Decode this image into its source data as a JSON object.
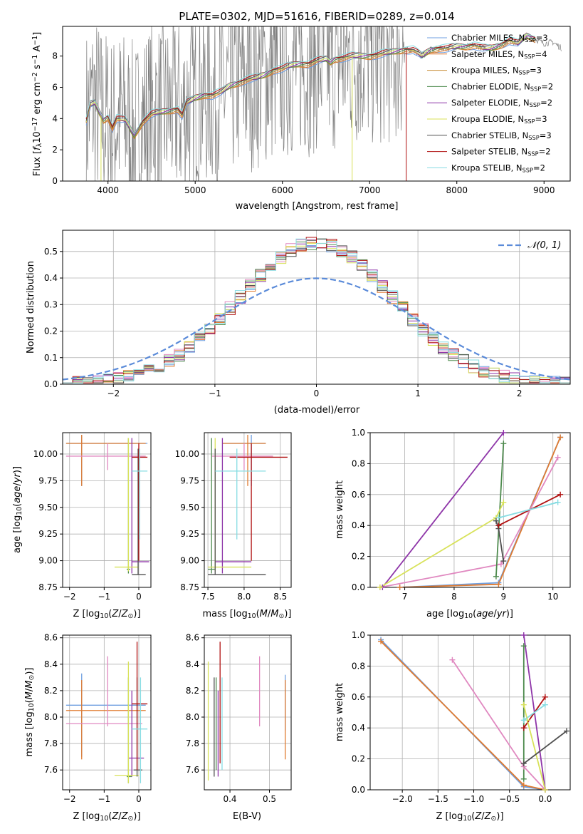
{
  "figure_title": "PLATE=0302, MJD=51616, FIBERID=0289, z=0.014",
  "colors": {
    "data": "#808080",
    "normal": "#5b8bd9",
    "models": [
      "#6f9fe0",
      "#e07b30",
      "#c58a2e",
      "#4e8b4e",
      "#8e35a8",
      "#d8e25a",
      "#505050",
      "#b01010",
      "#86dce2"
    ],
    "second": [
      "#6f9fe0",
      "#e07b30",
      "#e088c0",
      "#4e8b4e",
      "#8e35a8",
      "#d8e25a",
      "#505050",
      "#b01010",
      "#86dce2"
    ]
  },
  "legend_spectrum": [
    {
      "label": "Chabrier MILES, N",
      "sub": "SSP",
      "suffix": "=3"
    },
    {
      "label": "Salpeter MILES, N",
      "sub": "SSP",
      "suffix": "=4"
    },
    {
      "label": "Kroupa MILES, N",
      "sub": "SSP",
      "suffix": "=3"
    },
    {
      "label": "Chabrier ELODIE, N",
      "sub": "SSP",
      "suffix": "=2"
    },
    {
      "label": "Salpeter ELODIE, N",
      "sub": "SSP",
      "suffix": "=2"
    },
    {
      "label": "Kroupa ELODIE, N",
      "sub": "SSP",
      "suffix": "=3"
    },
    {
      "label": "Chabrier STELIB, N",
      "sub": "SSP",
      "suffix": "=3"
    },
    {
      "label": "Salpeter STELIB, N",
      "sub": "SSP",
      "suffix": "=2"
    },
    {
      "label": "Kroupa STELIB, N",
      "sub": "SSP",
      "suffix": "=2"
    }
  ],
  "chart_data": [
    {
      "id": "spectrum",
      "type": "line",
      "xlabel": "wavelength [Angstrom, rest frame]",
      "ylabel": "Flux [f_λ10^-17 erg cm^-2 s^-1 A^-1]",
      "xlim": [
        3480,
        9300
      ],
      "ylim": [
        0,
        9.9
      ],
      "xticks": [
        4000,
        5000,
        6000,
        7000,
        8000,
        9000
      ],
      "yticks": [
        0,
        2,
        4,
        6,
        8
      ],
      "grid": false,
      "legend_position": "top-right",
      "continuum": {
        "x": [
          3750,
          3800,
          3850,
          3900,
          3950,
          4000,
          4050,
          4100,
          4200,
          4300,
          4400,
          4500,
          4600,
          4700,
          4800,
          4850,
          4900,
          5000,
          5100,
          5200,
          5300,
          5400,
          5500,
          5600,
          5700,
          5800,
          5900,
          6000,
          6100,
          6200,
          6300,
          6400,
          6500,
          6550,
          6600,
          6700,
          6800,
          6900,
          7000,
          7100,
          7200,
          7300,
          7400,
          7500,
          7600,
          7700,
          7800,
          7900,
          8000,
          8100,
          8200,
          8300,
          8400,
          8500,
          8600,
          8700,
          8800,
          8900,
          9000,
          9100,
          9200
        ],
        "y": [
          3.8,
          4.9,
          5.0,
          4.4,
          3.9,
          4.1,
          3.4,
          4.0,
          3.9,
          2.9,
          3.8,
          4.3,
          4.4,
          4.5,
          4.6,
          4.2,
          5.0,
          5.3,
          5.5,
          5.5,
          5.7,
          6.1,
          6.3,
          6.5,
          6.6,
          6.8,
          7.1,
          7.2,
          7.4,
          7.5,
          7.5,
          7.7,
          7.8,
          7.6,
          7.8,
          7.9,
          8.0,
          8.0,
          8.0,
          8.1,
          8.2,
          8.3,
          8.4,
          8.4,
          8.0,
          8.4,
          8.5,
          8.5,
          8.6,
          8.6,
          8.7,
          8.5,
          8.5,
          8.7,
          9.0,
          8.8,
          9.3,
          9.1,
          8.8,
          8.9,
          8.5
        ]
      },
      "observed_noise_until": 7400,
      "dropouts": [
        3920,
        6800,
        7420
      ]
    },
    {
      "id": "residuals",
      "type": "line",
      "xlabel": "(data-model)/error",
      "ylabel": "Normed distribution",
      "xlim": [
        -2.5,
        2.5
      ],
      "ylim": [
        0,
        0.58
      ],
      "xticks": [
        -2,
        -1,
        0,
        1,
        2
      ],
      "yticks": [
        0.0,
        0.1,
        0.2,
        0.3,
        0.4,
        0.5
      ],
      "grid": true,
      "legend": "𝒩(0, 1)",
      "legend_position": "top-right",
      "bin_width": 0.1
    },
    {
      "id": "age-vs-z",
      "type": "scatter",
      "xlabel": "Z [log10(Z/Z⊙)]",
      "ylabel": "age  [log10(age/yr)]",
      "xlim": [
        -2.2,
        0.35
      ],
      "ylim": [
        8.75,
        10.2
      ],
      "xticks": [
        -2,
        -1,
        0
      ],
      "yticks": [
        8.75,
        9.0,
        9.25,
        9.5,
        9.75,
        10.0
      ],
      "grid": true,
      "errorbars": [
        {
          "c": 0,
          "x": -1.65,
          "y": 10.1,
          "ex": [
            -2.1,
            0.25
          ],
          "ey": [
            9.7,
            10.18
          ]
        },
        {
          "c": 1,
          "x": -1.65,
          "y": 10.1,
          "ex": [
            -2.1,
            0.2
          ],
          "ey": [
            9.7,
            10.18
          ]
        },
        {
          "c": 2,
          "x": -0.9,
          "y": 9.98,
          "ex": [
            -2.1,
            0.2
          ],
          "ey": [
            9.85,
            10.1
          ]
        },
        {
          "c": 3,
          "x": -0.3,
          "y": 8.92,
          "ex": [
            -0.35,
            -0.25
          ],
          "ey": [
            8.88,
            10.15
          ]
        },
        {
          "c": 4,
          "x": -0.2,
          "y": 8.99,
          "ex": [
            -0.2,
            0.3
          ],
          "ey": [
            8.88,
            10.15
          ]
        },
        {
          "c": 5,
          "x": -0.3,
          "y": 8.94,
          "ex": [
            -0.7,
            0.0
          ],
          "ey": [
            8.9,
            10.15
          ]
        },
        {
          "c": 6,
          "x": -0.02,
          "y": 8.87,
          "ex": [
            -0.2,
            0.2
          ],
          "ey": [
            8.87,
            10.05
          ]
        },
        {
          "c": 7,
          "x": 0.0,
          "y": 9.97,
          "ex": [
            -0.2,
            0.25
          ],
          "ey": [
            9.0,
            10.1
          ]
        },
        {
          "c": 8,
          "x": 0.02,
          "y": 9.84,
          "ex": [
            -0.2,
            0.25
          ],
          "ey": [
            9.2,
            10.05
          ]
        }
      ]
    },
    {
      "id": "age-vs-mass",
      "type": "scatter",
      "xlabel": "mass [log10(M/M⊙)]",
      "ylabel": "",
      "xlim": [
        7.45,
        8.65
      ],
      "ylim": [
        8.75,
        10.2
      ],
      "xticks": [
        7.5,
        8.0,
        8.5
      ],
      "yticks": [
        8.75,
        9.0,
        9.25,
        9.5,
        9.75,
        10.0
      ],
      "grid": true,
      "errorbars": [
        {
          "c": 0,
          "x": 8.1,
          "y": 10.1,
          "ex": [
            7.7,
            8.3
          ],
          "ey": [
            9.7,
            10.18
          ]
        },
        {
          "c": 1,
          "x": 8.05,
          "y": 10.1,
          "ex": [
            7.7,
            8.3
          ],
          "ey": [
            9.7,
            10.18
          ]
        },
        {
          "c": 2,
          "x": 8.0,
          "y": 9.98,
          "ex": [
            7.55,
            8.4
          ],
          "ey": [
            9.85,
            10.1
          ]
        },
        {
          "c": 3,
          "x": 7.55,
          "y": 8.92,
          "ex": [
            7.5,
            7.6
          ],
          "ey": [
            8.88,
            10.15
          ]
        },
        {
          "c": 4,
          "x": 7.7,
          "y": 8.99,
          "ex": [
            7.6,
            8.1
          ],
          "ey": [
            8.88,
            10.15
          ]
        },
        {
          "c": 5,
          "x": 7.6,
          "y": 8.94,
          "ex": [
            7.5,
            8.1
          ],
          "ey": [
            8.9,
            10.15
          ]
        },
        {
          "c": 6,
          "x": 7.6,
          "y": 8.87,
          "ex": [
            7.5,
            8.3
          ],
          "ey": [
            8.87,
            10.05
          ]
        },
        {
          "c": 7,
          "x": 8.1,
          "y": 9.97,
          "ex": [
            7.8,
            8.6
          ],
          "ey": [
            9.0,
            10.1
          ]
        },
        {
          "c": 8,
          "x": 7.9,
          "y": 9.84,
          "ex": [
            7.6,
            8.3
          ],
          "ey": [
            9.2,
            10.05
          ]
        }
      ]
    },
    {
      "id": "weight-vs-age",
      "type": "line",
      "xlabel": "age  [log10(age/yr)]",
      "ylabel": "mass weight",
      "xlim": [
        6.3,
        10.35
      ],
      "ylim": [
        0,
        1.0
      ],
      "xticks": [
        7,
        8,
        9,
        10
      ],
      "yticks": [
        0.0,
        0.2,
        0.4,
        0.6,
        0.8,
        1.0
      ],
      "grid": true,
      "series": [
        {
          "c": 0,
          "x": [
            6.9,
            8.9,
            10.15
          ],
          "y": [
            0.0,
            0.03,
            0.97
          ]
        },
        {
          "c": 1,
          "x": [
            6.9,
            8.9,
            10.15
          ],
          "y": [
            0.0,
            0.02,
            0.97
          ]
        },
        {
          "c": 2,
          "x": [
            6.5,
            8.95,
            10.1
          ],
          "y": [
            0.0,
            0.15,
            0.84
          ]
        },
        {
          "c": 3,
          "x": [
            8.85,
            9.0
          ],
          "y": [
            0.07,
            0.93
          ]
        },
        {
          "c": 4,
          "x": [
            6.55,
            9.0
          ],
          "y": [
            0.0,
            1.0
          ]
        },
        {
          "c": 5,
          "x": [
            6.5,
            8.85,
            9.0
          ],
          "y": [
            0.0,
            0.45,
            0.55
          ]
        },
        {
          "c": 6,
          "x": [
            8.85,
            8.9,
            9.0
          ],
          "y": [
            0.43,
            0.38,
            0.17
          ]
        },
        {
          "c": 7,
          "x": [
            8.9,
            10.15
          ],
          "y": [
            0.4,
            0.6
          ]
        },
        {
          "c": 8,
          "x": [
            8.9,
            10.1
          ],
          "y": [
            0.45,
            0.55
          ]
        }
      ]
    },
    {
      "id": "mass-vs-z",
      "type": "scatter",
      "xlabel": "Z [log10(Z/Z⊙)]",
      "ylabel": "mass [log10(M/M⊙)]",
      "xlim": [
        -2.2,
        0.35
      ],
      "ylim": [
        7.45,
        8.62
      ],
      "xticks": [
        -2,
        -1,
        0
      ],
      "yticks": [
        7.6,
        7.8,
        8.0,
        8.2,
        8.4,
        8.6
      ],
      "grid": true,
      "errorbars": [
        {
          "c": 0,
          "x": -1.65,
          "y": 8.09,
          "ex": [
            -2.1,
            0.2
          ],
          "ey": [
            7.7,
            8.33
          ]
        },
        {
          "c": 1,
          "x": -1.65,
          "y": 8.05,
          "ex": [
            -2.1,
            0.2
          ],
          "ey": [
            7.68,
            8.28
          ]
        },
        {
          "c": 2,
          "x": -0.9,
          "y": 7.95,
          "ex": [
            -2.1,
            0.1
          ],
          "ey": [
            7.93,
            8.46
          ]
        },
        {
          "c": 3,
          "x": -0.3,
          "y": 7.55,
          "ex": [
            -0.35,
            -0.2
          ],
          "ey": [
            7.5,
            8.3
          ]
        },
        {
          "c": 4,
          "x": -0.2,
          "y": 7.69,
          "ex": [
            -0.3,
            0.15
          ],
          "ey": [
            7.55,
            8.2
          ]
        },
        {
          "c": 5,
          "x": -0.3,
          "y": 7.56,
          "ex": [
            -0.7,
            0.0
          ],
          "ey": [
            7.5,
            8.42
          ]
        },
        {
          "c": 6,
          "x": -0.05,
          "y": 7.6,
          "ex": [
            -0.15,
            0.1
          ],
          "ey": [
            7.55,
            8.3
          ]
        },
        {
          "c": 7,
          "x": -0.05,
          "y": 8.1,
          "ex": [
            -0.2,
            0.25
          ],
          "ey": [
            7.6,
            8.57
          ]
        },
        {
          "c": 8,
          "x": 0.05,
          "y": 7.91,
          "ex": [
            -0.2,
            0.25
          ],
          "ey": [
            7.5,
            8.3
          ]
        }
      ]
    },
    {
      "id": "mass-vs-ebv",
      "type": "scatter",
      "xlabel": "E(B-V)",
      "ylabel": "",
      "xlim": [
        0.335,
        0.555
      ],
      "ylim": [
        7.45,
        8.62
      ],
      "xticks": [
        0.4,
        0.5
      ],
      "yticks": [
        7.6,
        7.8,
        8.0,
        8.2,
        8.4,
        8.6
      ],
      "grid": true,
      "errorbars": [
        {
          "c": 0,
          "x": 0.54,
          "ey": [
            7.9,
            8.32
          ]
        },
        {
          "c": 1,
          "x": 0.54,
          "ey": [
            7.68,
            8.28
          ]
        },
        {
          "c": 2,
          "x": 0.475,
          "ey": [
            7.93,
            8.46
          ]
        },
        {
          "c": 3,
          "x": 0.365,
          "ey": [
            7.6,
            8.3
          ]
        },
        {
          "c": 4,
          "x": 0.37,
          "ey": [
            7.55,
            8.2
          ]
        },
        {
          "c": 5,
          "x": 0.345,
          "ey": [
            7.52,
            8.42
          ]
        },
        {
          "c": 6,
          "x": 0.36,
          "ey": [
            7.55,
            8.3
          ]
        },
        {
          "c": 7,
          "x": 0.375,
          "ey": [
            7.65,
            8.57
          ]
        },
        {
          "c": 8,
          "x": 0.38,
          "ey": [
            7.6,
            8.3
          ]
        }
      ]
    },
    {
      "id": "weight-vs-z",
      "type": "line",
      "xlabel": "Z [log10(Z/Z⊙)]",
      "ylabel": "mass weight",
      "xlim": [
        -2.45,
        0.35
      ],
      "ylim": [
        0,
        1.0
      ],
      "xticks": [
        -2.0,
        -1.5,
        -1.0,
        -0.5,
        0.0
      ],
      "yticks": [
        0.0,
        0.2,
        0.4,
        0.6,
        0.8,
        1.0
      ],
      "grid": true,
      "series": [
        {
          "c": 0,
          "x": [
            -2.3,
            -0.3,
            0.0
          ],
          "y": [
            0.97,
            0.02,
            0.0
          ]
        },
        {
          "c": 1,
          "x": [
            -2.3,
            -0.3,
            0.0
          ],
          "y": [
            0.96,
            0.03,
            0.0
          ]
        },
        {
          "c": 2,
          "x": [
            -1.3,
            -0.3,
            0.0
          ],
          "y": [
            0.84,
            0.15,
            0.0
          ]
        },
        {
          "c": 3,
          "x": [
            -0.3,
            -0.3
          ],
          "y": [
            0.07,
            0.93
          ]
        },
        {
          "c": 4,
          "x": [
            -0.3,
            0.0
          ],
          "y": [
            1.0,
            0.0
          ]
        },
        {
          "c": 5,
          "x": [
            -0.3,
            -0.25,
            0.0
          ],
          "y": [
            0.55,
            0.45,
            0.0
          ]
        },
        {
          "c": 6,
          "x": [
            -0.3,
            0.3
          ],
          "y": [
            0.17,
            0.38
          ]
        },
        {
          "c": 7,
          "x": [
            -0.3,
            0.0
          ],
          "y": [
            0.4,
            0.6
          ]
        },
        {
          "c": 8,
          "x": [
            -0.3,
            0.0
          ],
          "y": [
            0.45,
            0.55
          ]
        }
      ]
    }
  ]
}
